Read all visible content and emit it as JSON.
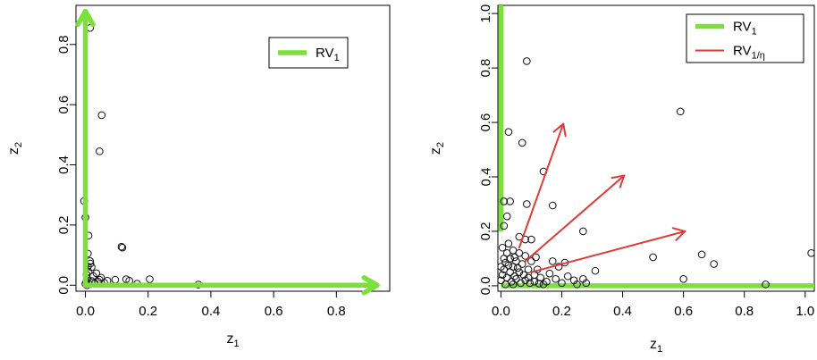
{
  "chart_data": [
    {
      "type": "scatter",
      "title": "",
      "xlabel": "z",
      "xlabel_sub": "1",
      "ylabel": "z",
      "ylabel_sub": "2",
      "xlim": [
        -0.03,
        0.97
      ],
      "ylim": [
        -0.02,
        0.93
      ],
      "xticks": [
        0.0,
        0.2,
        0.4,
        0.6,
        0.8
      ],
      "xtick_labels": [
        "0.0",
        "0.2",
        "0.4",
        "0.6",
        "0.8"
      ],
      "yticks": [
        0.0,
        0.2,
        0.4,
        0.6,
        0.8
      ],
      "ytick_labels": [
        "0.0",
        "0.2",
        "0.4",
        "0.6",
        "0.8"
      ],
      "grid": false,
      "legend_position": "top-right",
      "legend": [
        {
          "label": "RV",
          "sub": "1",
          "color": "#7be13a",
          "kind": "thick"
        }
      ],
      "arrows": [
        {
          "name": "RV1 z1 direction",
          "color": "#7be13a",
          "from": [
            0.0,
            0.0
          ],
          "to": [
            0.93,
            0.0
          ]
        },
        {
          "name": "RV1 z2 direction",
          "color": "#7be13a",
          "from": [
            0.0,
            0.0
          ],
          "to": [
            0.0,
            0.91
          ]
        }
      ],
      "points": [
        [
          0.015,
          0.855
        ],
        [
          0.052,
          0.565
        ],
        [
          0.045,
          0.445
        ],
        [
          0.115,
          0.128
        ],
        [
          0.118,
          0.125
        ],
        [
          -0.004,
          0.28
        ],
        [
          0.0,
          0.225
        ],
        [
          0.01,
          0.165
        ],
        [
          0.008,
          0.105
        ],
        [
          0.015,
          0.08
        ],
        [
          0.02,
          0.06
        ],
        [
          0.035,
          0.04
        ],
        [
          0.05,
          0.025
        ],
        [
          0.07,
          0.015
        ],
        [
          0.095,
          0.018
        ],
        [
          0.13,
          0.02
        ],
        [
          0.14,
          0.015
        ],
        [
          0.165,
          0.005
        ],
        [
          0.205,
          0.02
        ],
        [
          0.36,
          0.002
        ],
        [
          0.003,
          0.012
        ],
        [
          0.006,
          0.022
        ],
        [
          0.004,
          0.035
        ],
        [
          0.01,
          0.045
        ],
        [
          0.025,
          0.03
        ],
        [
          0.04,
          0.012
        ],
        [
          0.06,
          0.008
        ],
        [
          0.0,
          0.005
        ],
        [
          0.012,
          0.004
        ],
        [
          0.03,
          0.006
        ],
        [
          0.02,
          0.014
        ],
        [
          0.008,
          0.062
        ],
        [
          0.016,
          0.072
        ],
        [
          0.045,
          0.018
        ],
        [
          0.005,
          0.0
        ]
      ]
    },
    {
      "type": "scatter",
      "title": "",
      "xlabel": "z",
      "xlabel_sub": "1",
      "ylabel": "z",
      "ylabel_sub": "2",
      "xlim": [
        -0.01,
        1.03
      ],
      "ylim": [
        -0.02,
        1.03
      ],
      "xticks": [
        0.0,
        0.2,
        0.4,
        0.6,
        0.8,
        1.0
      ],
      "xtick_labels": [
        "0.0",
        "0.2",
        "0.4",
        "0.6",
        "0.8",
        "1.0"
      ],
      "yticks": [
        0.0,
        0.2,
        0.4,
        0.6,
        0.8,
        1.0
      ],
      "ytick_labels": [
        "0.0",
        "0.2",
        "0.4",
        "0.6",
        "0.8",
        "1.0"
      ],
      "grid": false,
      "legend_position": "top-right",
      "legend": [
        {
          "label": "RV",
          "sub": "1",
          "color": "#7be13a",
          "kind": "thick"
        },
        {
          "label": "RV",
          "sub": "1/η",
          "color": "#e03a3a",
          "kind": "thin"
        }
      ],
      "green_lines": [
        {
          "name": "RV1 z2 segment",
          "from": [
            0.0,
            0.2
          ],
          "to": [
            0.0,
            1.03
          ]
        },
        {
          "name": "RV1 z1 segment",
          "from": [
            0.0,
            0.0
          ],
          "to": [
            1.03,
            0.0
          ]
        }
      ],
      "arrows": [
        {
          "name": "RV1/eta arrow 1",
          "color": "#e03a3a",
          "from": [
            0.06,
            0.14
          ],
          "to": [
            0.205,
            0.595
          ]
        },
        {
          "name": "RV1/eta arrow 2",
          "color": "#e03a3a",
          "from": [
            0.08,
            0.09
          ],
          "to": [
            0.405,
            0.405
          ]
        },
        {
          "name": "RV1/eta arrow 3",
          "color": "#e03a3a",
          "from": [
            0.1,
            0.05
          ],
          "to": [
            0.605,
            0.2
          ]
        }
      ],
      "points": [
        [
          0.085,
          0.825
        ],
        [
          0.59,
          0.64
        ],
        [
          0.025,
          0.565
        ],
        [
          0.07,
          0.525
        ],
        [
          0.14,
          0.42
        ],
        [
          0.01,
          0.31
        ],
        [
          0.03,
          0.31
        ],
        [
          0.085,
          0.3
        ],
        [
          0.17,
          0.295
        ],
        [
          0.02,
          0.255
        ],
        [
          0.01,
          0.22
        ],
        [
          0.27,
          0.2
        ],
        [
          0.06,
          0.18
        ],
        [
          0.08,
          0.17
        ],
        [
          0.1,
          0.17
        ],
        [
          0.025,
          0.155
        ],
        [
          0.005,
          0.14
        ],
        [
          0.04,
          0.13
        ],
        [
          0.06,
          0.12
        ],
        [
          0.5,
          0.105
        ],
        [
          0.66,
          0.115
        ],
        [
          1.02,
          0.12
        ],
        [
          0.7,
          0.08
        ],
        [
          0.6,
          0.025
        ],
        [
          0.87,
          0.005
        ],
        [
          0.31,
          0.055
        ],
        [
          0.24,
          0.02
        ],
        [
          0.27,
          0.025
        ],
        [
          0.19,
          0.07
        ],
        [
          0.21,
          0.085
        ],
        [
          0.22,
          0.035
        ],
        [
          0.16,
          0.045
        ],
        [
          0.15,
          0.015
        ],
        [
          0.13,
          0.03
        ],
        [
          0.17,
          0.09
        ],
        [
          0.12,
          0.06
        ],
        [
          0.1,
          0.09
        ],
        [
          0.11,
          0.04
        ],
        [
          0.09,
          0.06
        ],
        [
          0.08,
          0.11
        ],
        [
          0.07,
          0.08
        ],
        [
          0.06,
          0.05
        ],
        [
          0.05,
          0.09
        ],
        [
          0.04,
          0.07
        ],
        [
          0.03,
          0.1
        ],
        [
          0.02,
          0.12
        ],
        [
          0.015,
          0.085
        ],
        [
          0.01,
          0.06
        ],
        [
          0.005,
          0.04
        ],
        [
          0.0,
          0.02
        ],
        [
          0.02,
          0.03
        ],
        [
          0.035,
          0.015
        ],
        [
          0.05,
          0.025
        ],
        [
          0.065,
          0.01
        ],
        [
          0.08,
          0.02
        ],
        [
          0.095,
          0.01
        ],
        [
          0.11,
          0.015
        ],
        [
          0.125,
          0.008
        ],
        [
          0.14,
          0.005
        ],
        [
          0.03,
          0.05
        ],
        [
          0.045,
          0.035
        ],
        [
          0.055,
          0.065
        ],
        [
          0.025,
          0.075
        ],
        [
          0.01,
          0.1
        ],
        [
          0.0,
          0.07
        ],
        [
          0.015,
          0.005
        ],
        [
          0.04,
          0.005
        ],
        [
          0.075,
          0.04
        ],
        [
          0.09,
          0.03
        ],
        [
          0.18,
          0.025
        ],
        [
          0.2,
          0.01
        ],
        [
          0.25,
          0.005
        ],
        [
          0.28,
          0.01
        ],
        [
          0.115,
          0.105
        ],
        [
          0.045,
          0.105
        ]
      ]
    }
  ]
}
